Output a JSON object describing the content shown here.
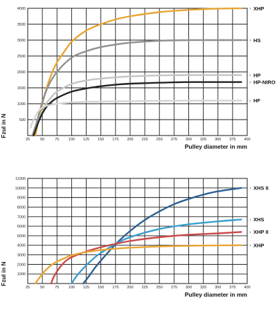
{
  "chart_data": [
    {
      "type": "line",
      "xlabel": "Pulley diameter in mm",
      "ylabel": "Fzul in N",
      "xlim": [
        25,
        400
      ],
      "ylim": [
        0,
        4000
      ],
      "xticks": [
        25,
        50,
        75,
        100,
        125,
        150,
        175,
        200,
        225,
        250,
        275,
        300,
        325,
        350,
        375,
        400
      ],
      "yticks": [
        500,
        1000,
        1500,
        2000,
        2500,
        3000,
        3500,
        4000
      ],
      "grid": true,
      "legend": "right-end labels",
      "series": [
        {
          "name": "XHP",
          "color": "#e8a533",
          "x": [
            38,
            45,
            55,
            65,
            75,
            90,
            100,
            125,
            150,
            175,
            200,
            250,
            300,
            350,
            390
          ],
          "y": [
            0,
            600,
            1350,
            1900,
            2300,
            2700,
            2950,
            3300,
            3500,
            3650,
            3750,
            3880,
            3950,
            3990,
            4000
          ]
        },
        {
          "name": "HS",
          "color": "#8f8f8f",
          "x": [
            33,
            40,
            50,
            60,
            75,
            100,
            125,
            150,
            175,
            200,
            250,
            300,
            340,
            390
          ],
          "y": [
            0,
            400,
            1050,
            1550,
            2000,
            2450,
            2650,
            2780,
            2860,
            2920,
            2980,
            3000,
            3000,
            3000
          ]
        },
        {
          "name": "HP",
          "color": "#c4c4c4",
          "x": [
            35,
            45,
            55,
            65,
            75,
            100,
            125,
            150,
            175,
            200,
            250,
            300,
            390
          ],
          "y": [
            0,
            550,
            950,
            1200,
            1380,
            1620,
            1730,
            1790,
            1830,
            1860,
            1890,
            1900,
            1900
          ]
        },
        {
          "name": "HP-NIRO",
          "color": "#222222",
          "x": [
            35,
            45,
            55,
            65,
            75,
            100,
            125,
            150,
            175,
            200,
            250,
            300,
            390
          ],
          "y": [
            0,
            500,
            850,
            1050,
            1180,
            1380,
            1480,
            1550,
            1600,
            1630,
            1660,
            1680,
            1680
          ]
        },
        {
          "name": "HF",
          "color": "#d4d4d4",
          "x": [
            30,
            35,
            45,
            55,
            75,
            100,
            125,
            150,
            200,
            250,
            300,
            390
          ],
          "y": [
            250,
            500,
            800,
            920,
            1000,
            1040,
            1060,
            1070,
            1080,
            1090,
            1095,
            1100
          ]
        }
      ]
    },
    {
      "type": "line",
      "xlabel": "Pulley diameter in mm",
      "ylabel": "Fzul in N",
      "xlim": [
        25,
        400
      ],
      "ylim": [
        0,
        11000
      ],
      "xticks": [
        25,
        50,
        75,
        100,
        125,
        150,
        175,
        200,
        225,
        250,
        275,
        300,
        325,
        350,
        375,
        400
      ],
      "yticks": [
        1000,
        2000,
        3000,
        4000,
        5000,
        6000,
        7000,
        8000,
        9000,
        10000,
        11000
      ],
      "grid": true,
      "legend": "right-end labels",
      "series": [
        {
          "name": "XHS II",
          "color": "#2c5f91",
          "x": [
            120,
            130,
            140,
            150,
            175,
            200,
            225,
            250,
            275,
            300,
            325,
            350,
            390
          ],
          "y": [
            0,
            800,
            1650,
            2400,
            4100,
            5500,
            6650,
            7550,
            8300,
            8850,
            9300,
            9650,
            10000
          ]
        },
        {
          "name": "XHS",
          "color": "#3a9fcc",
          "x": [
            100,
            110,
            125,
            140,
            150,
            175,
            200,
            250,
            300,
            350,
            390
          ],
          "y": [
            0,
            900,
            1900,
            2750,
            3200,
            4150,
            4850,
            5700,
            6200,
            6500,
            6700
          ]
        },
        {
          "name": "XHP II",
          "color": "#c94a4a",
          "x": [
            65,
            70,
            80,
            90,
            100,
            125,
            150,
            175,
            200,
            250,
            300,
            350,
            390
          ],
          "y": [
            0,
            750,
            1700,
            2350,
            2750,
            3350,
            3800,
            4150,
            4450,
            4850,
            5100,
            5250,
            5400
          ]
        },
        {
          "name": "XHP",
          "color": "#e8a533",
          "x": [
            38,
            45,
            55,
            65,
            75,
            90,
            100,
            125,
            150,
            175,
            200,
            250,
            300,
            350,
            390
          ],
          "y": [
            0,
            600,
            1350,
            1900,
            2300,
            2700,
            2950,
            3300,
            3500,
            3650,
            3750,
            3880,
            3950,
            3990,
            4000
          ]
        }
      ]
    }
  ]
}
